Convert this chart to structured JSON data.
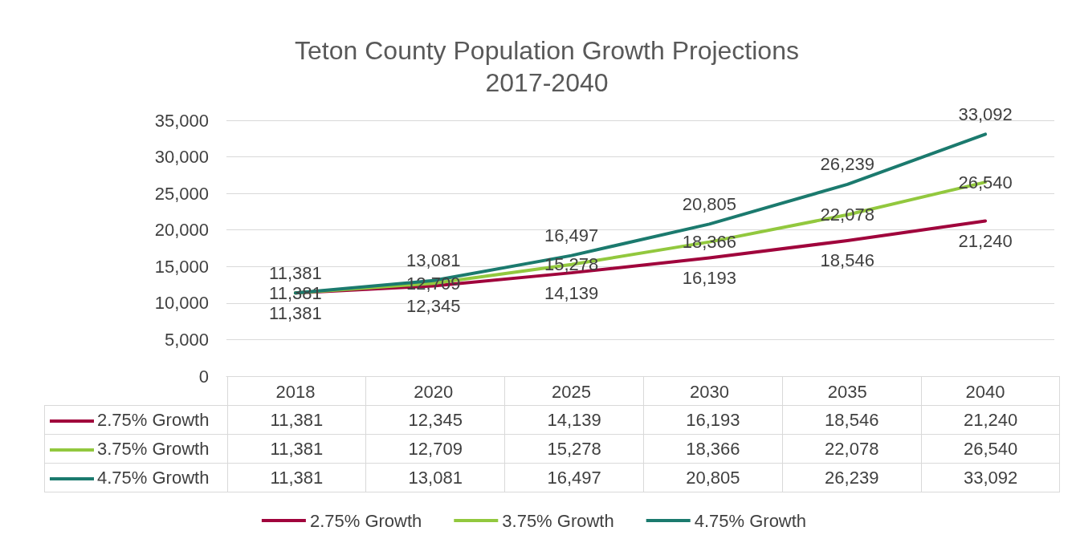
{
  "chart_data": {
    "type": "line",
    "title": "Teton County Population Growth Projections\n2017-2040",
    "categories": [
      "2018",
      "2020",
      "2025",
      "2030",
      "2035",
      "2040"
    ],
    "series": [
      {
        "name": "2.75% Growth",
        "color": "#a0043c",
        "values": [
          11381,
          12345,
          14139,
          16193,
          18546,
          21240
        ],
        "value_labels": [
          "11,381",
          "12,345",
          "14,139",
          "16,193",
          "18,546",
          "21,240"
        ]
      },
      {
        "name": "3.75% Growth",
        "color": "#92c83e",
        "values": [
          11381,
          12709,
          15278,
          18366,
          22078,
          26540
        ],
        "value_labels": [
          "11,381",
          "12,709",
          "15,278",
          "18,366",
          "22,078",
          "26,540"
        ]
      },
      {
        "name": "4.75% Growth",
        "color": "#1b7a6e",
        "values": [
          11381,
          13081,
          16497,
          20805,
          26239,
          33092
        ],
        "value_labels": [
          "11,381",
          "13,081",
          "16,497",
          "20,805",
          "26,239",
          "33,092"
        ]
      }
    ],
    "ylim": [
      0,
      35000
    ],
    "yticks": [
      0,
      {
        "value": 5000,
        "label": "5,000"
      },
      {
        "value": 10000,
        "label": "10,000"
      },
      {
        "value": 15000,
        "label": "15,000"
      },
      {
        "value": 20000,
        "label": "20,000"
      },
      {
        "value": 25000,
        "label": "25,000"
      },
      {
        "value": 30000,
        "label": "30,000"
      },
      {
        "value": 35000,
        "label": "35,000"
      }
    ],
    "grid": "y",
    "legend": "bottom"
  }
}
